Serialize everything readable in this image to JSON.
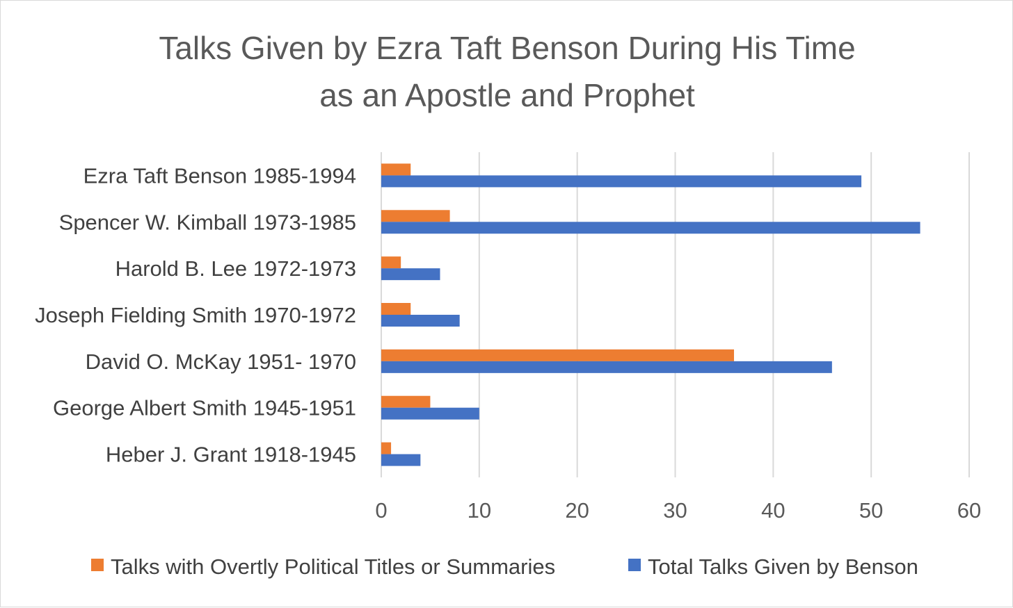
{
  "chart_data": {
    "type": "bar",
    "orientation": "horizontal",
    "title_lines": [
      "Talks Given by Ezra Taft Benson During His Time",
      "as an Apostle and Prophet"
    ],
    "categories": [
      "Heber J. Grant 1918-1945",
      "George Albert Smith 1945-1951",
      "David O. McKay 1951- 1970",
      "Joseph Fielding Smith 1970-1972",
      "Harold B. Lee 1972-1973",
      "Spencer W. Kimball 1973-1985",
      "Ezra Taft Benson 1985-1994"
    ],
    "series": [
      {
        "name": "Talks with Overtly Political Titles or Summaries",
        "color": "#ed7d31",
        "values": [
          1,
          5,
          36,
          3,
          2,
          7,
          3
        ]
      },
      {
        "name": "Total Talks Given by Benson",
        "color": "#4472c4",
        "values": [
          4,
          10,
          46,
          8,
          6,
          55,
          49
        ]
      }
    ],
    "xlim": [
      0,
      60
    ],
    "xticks": [
      "0",
      "10",
      "20",
      "30",
      "40",
      "50",
      "60"
    ],
    "xtick_values": [
      0,
      10,
      20,
      30,
      40,
      50,
      60
    ],
    "grid": "vertical",
    "legend_position": "bottom"
  }
}
